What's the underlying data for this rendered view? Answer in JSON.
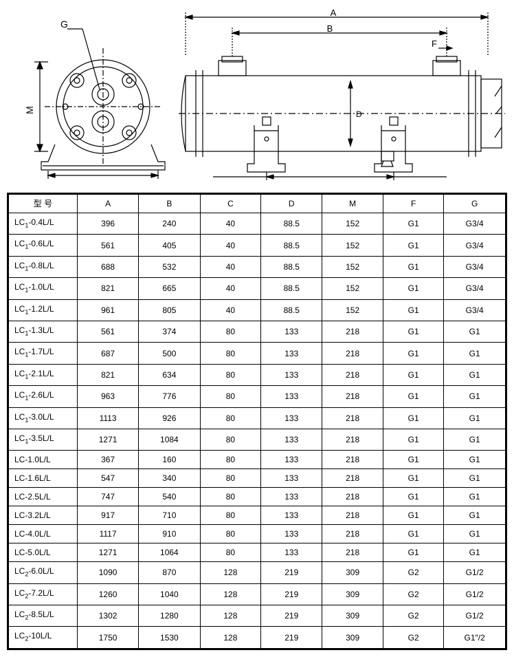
{
  "diagram": {
    "labels": {
      "A": "A",
      "B": "B",
      "D": "D",
      "F": "F",
      "G": "G",
      "M": "M"
    },
    "stroke": "#000000",
    "fill": "#ffffff"
  },
  "table": {
    "columns": [
      "型  号",
      "A",
      "B",
      "C",
      "D",
      "M",
      "F",
      "G"
    ],
    "rows": [
      [
        "LC₁-0.4L/L",
        "396",
        "240",
        "40",
        "88.5",
        "152",
        "G1",
        "G3/4"
      ],
      [
        "LC₁-0.6L/L",
        "561",
        "405",
        "40",
        "88.5",
        "152",
        "G1",
        "G3/4"
      ],
      [
        "LC₁-0.8L/L",
        "688",
        "532",
        "40",
        "88.5",
        "152",
        "G1",
        "G3/4"
      ],
      [
        "LC₁-1.0L/L",
        "821",
        "665",
        "40",
        "88.5",
        "152",
        "G1",
        "G3/4"
      ],
      [
        "LC₁-1.2L/L",
        "961",
        "805",
        "40",
        "88.5",
        "152",
        "G1",
        "G3/4"
      ],
      [
        "LC₁-1.3L/L",
        "561",
        "374",
        "80",
        "133",
        "218",
        "G1",
        "G1"
      ],
      [
        "LC₁-1.7L/L",
        "687",
        "500",
        "80",
        "133",
        "218",
        "G1",
        "G1"
      ],
      [
        "LC₁-2.1L/L",
        "821",
        "634",
        "80",
        "133",
        "218",
        "G1",
        "G1"
      ],
      [
        "LC₁-2.6L/L",
        "963",
        "776",
        "80",
        "133",
        "218",
        "G1",
        "G1"
      ],
      [
        "LC₁-3.0L/L",
        "1113",
        "926",
        "80",
        "133",
        "218",
        "G1",
        "G1"
      ],
      [
        "LC₁-3.5L/L",
        "1271",
        "1084",
        "80",
        "133",
        "218",
        "G1",
        "G1"
      ],
      [
        "LC-1.0L/L",
        "367",
        "160",
        "80",
        "133",
        "218",
        "G1",
        "G1"
      ],
      [
        "LC-1.6L/L",
        "547",
        "340",
        "80",
        "133",
        "218",
        "G1",
        "G1"
      ],
      [
        "LC-2.5L/L",
        "747",
        "540",
        "80",
        "133",
        "218",
        "G1",
        "G1"
      ],
      [
        "LC-3.2L/L",
        "917",
        "710",
        "80",
        "133",
        "218",
        "G1",
        "G1"
      ],
      [
        "LC-4.0L/L",
        "1117",
        "910",
        "80",
        "133",
        "218",
        "G1",
        "G1"
      ],
      [
        "LC-5.0L/L",
        "1271",
        "1064",
        "80",
        "133",
        "218",
        "G1",
        "G1"
      ],
      [
        "LC₂-6.0L/L",
        "1090",
        "870",
        "128",
        "219",
        "309",
        "G2",
        "G1/2"
      ],
      [
        "LC₂-7.2L/L",
        "1260",
        "1040",
        "128",
        "219",
        "309",
        "G2",
        "G1/2"
      ],
      [
        "LC₂-8.5L/L",
        "1302",
        "1280",
        "128",
        "219",
        "309",
        "G2",
        "G1/2"
      ],
      [
        "LC₂-10L/L",
        "1750",
        "1530",
        "128",
        "219",
        "309",
        "G2",
        "G1″/2"
      ]
    ]
  }
}
